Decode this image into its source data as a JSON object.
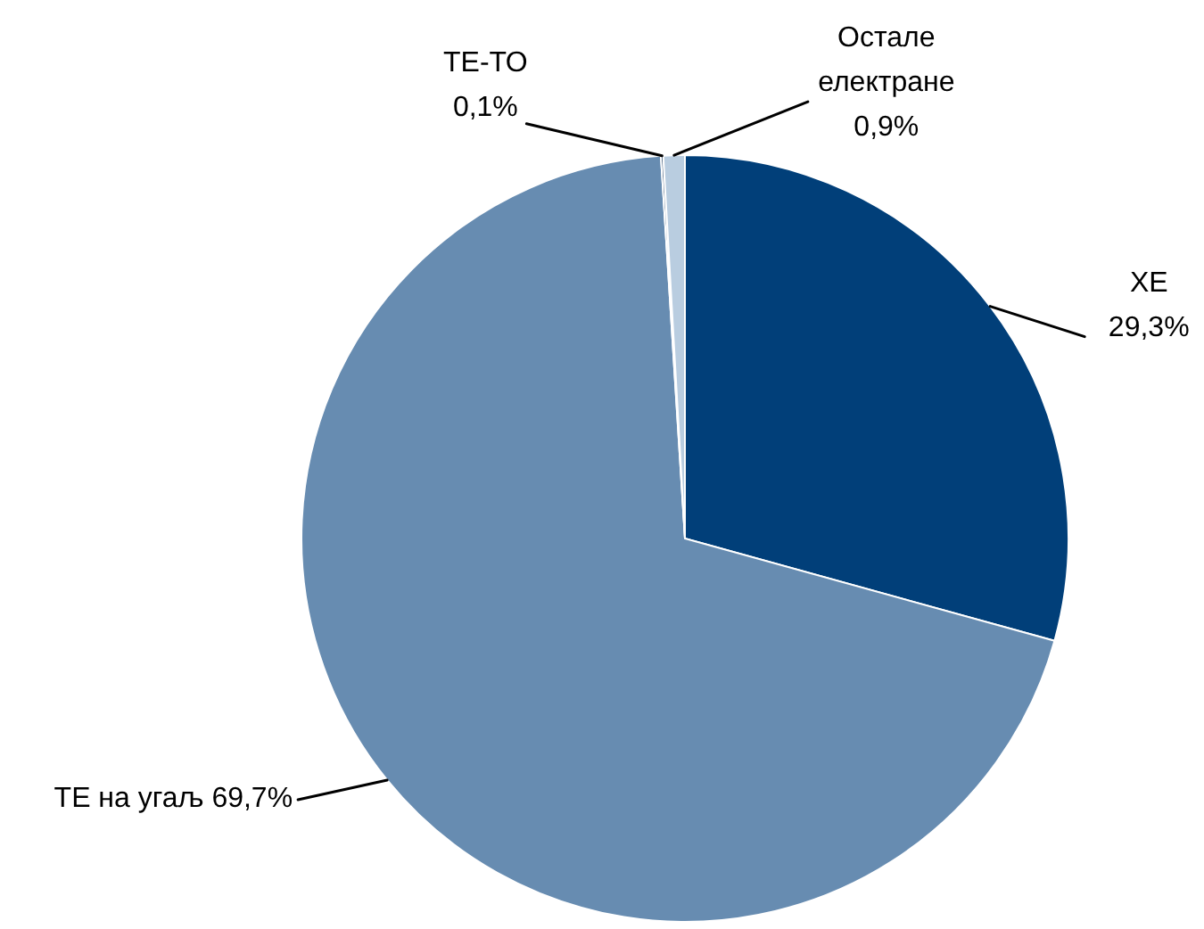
{
  "chart_data": {
    "type": "pie",
    "categories": [
      "ХЕ",
      "ТЕ на угаљ",
      "ТЕ-ТО",
      "Остале електране"
    ],
    "values": [
      29.3,
      69.7,
      0.1,
      0.9
    ],
    "value_labels": [
      "29,3%",
      "69,7%",
      "0,1%",
      "0,9%"
    ],
    "colors": [
      "#013f79",
      "#678cb1",
      "#17375e",
      "#b9cde0"
    ]
  }
}
